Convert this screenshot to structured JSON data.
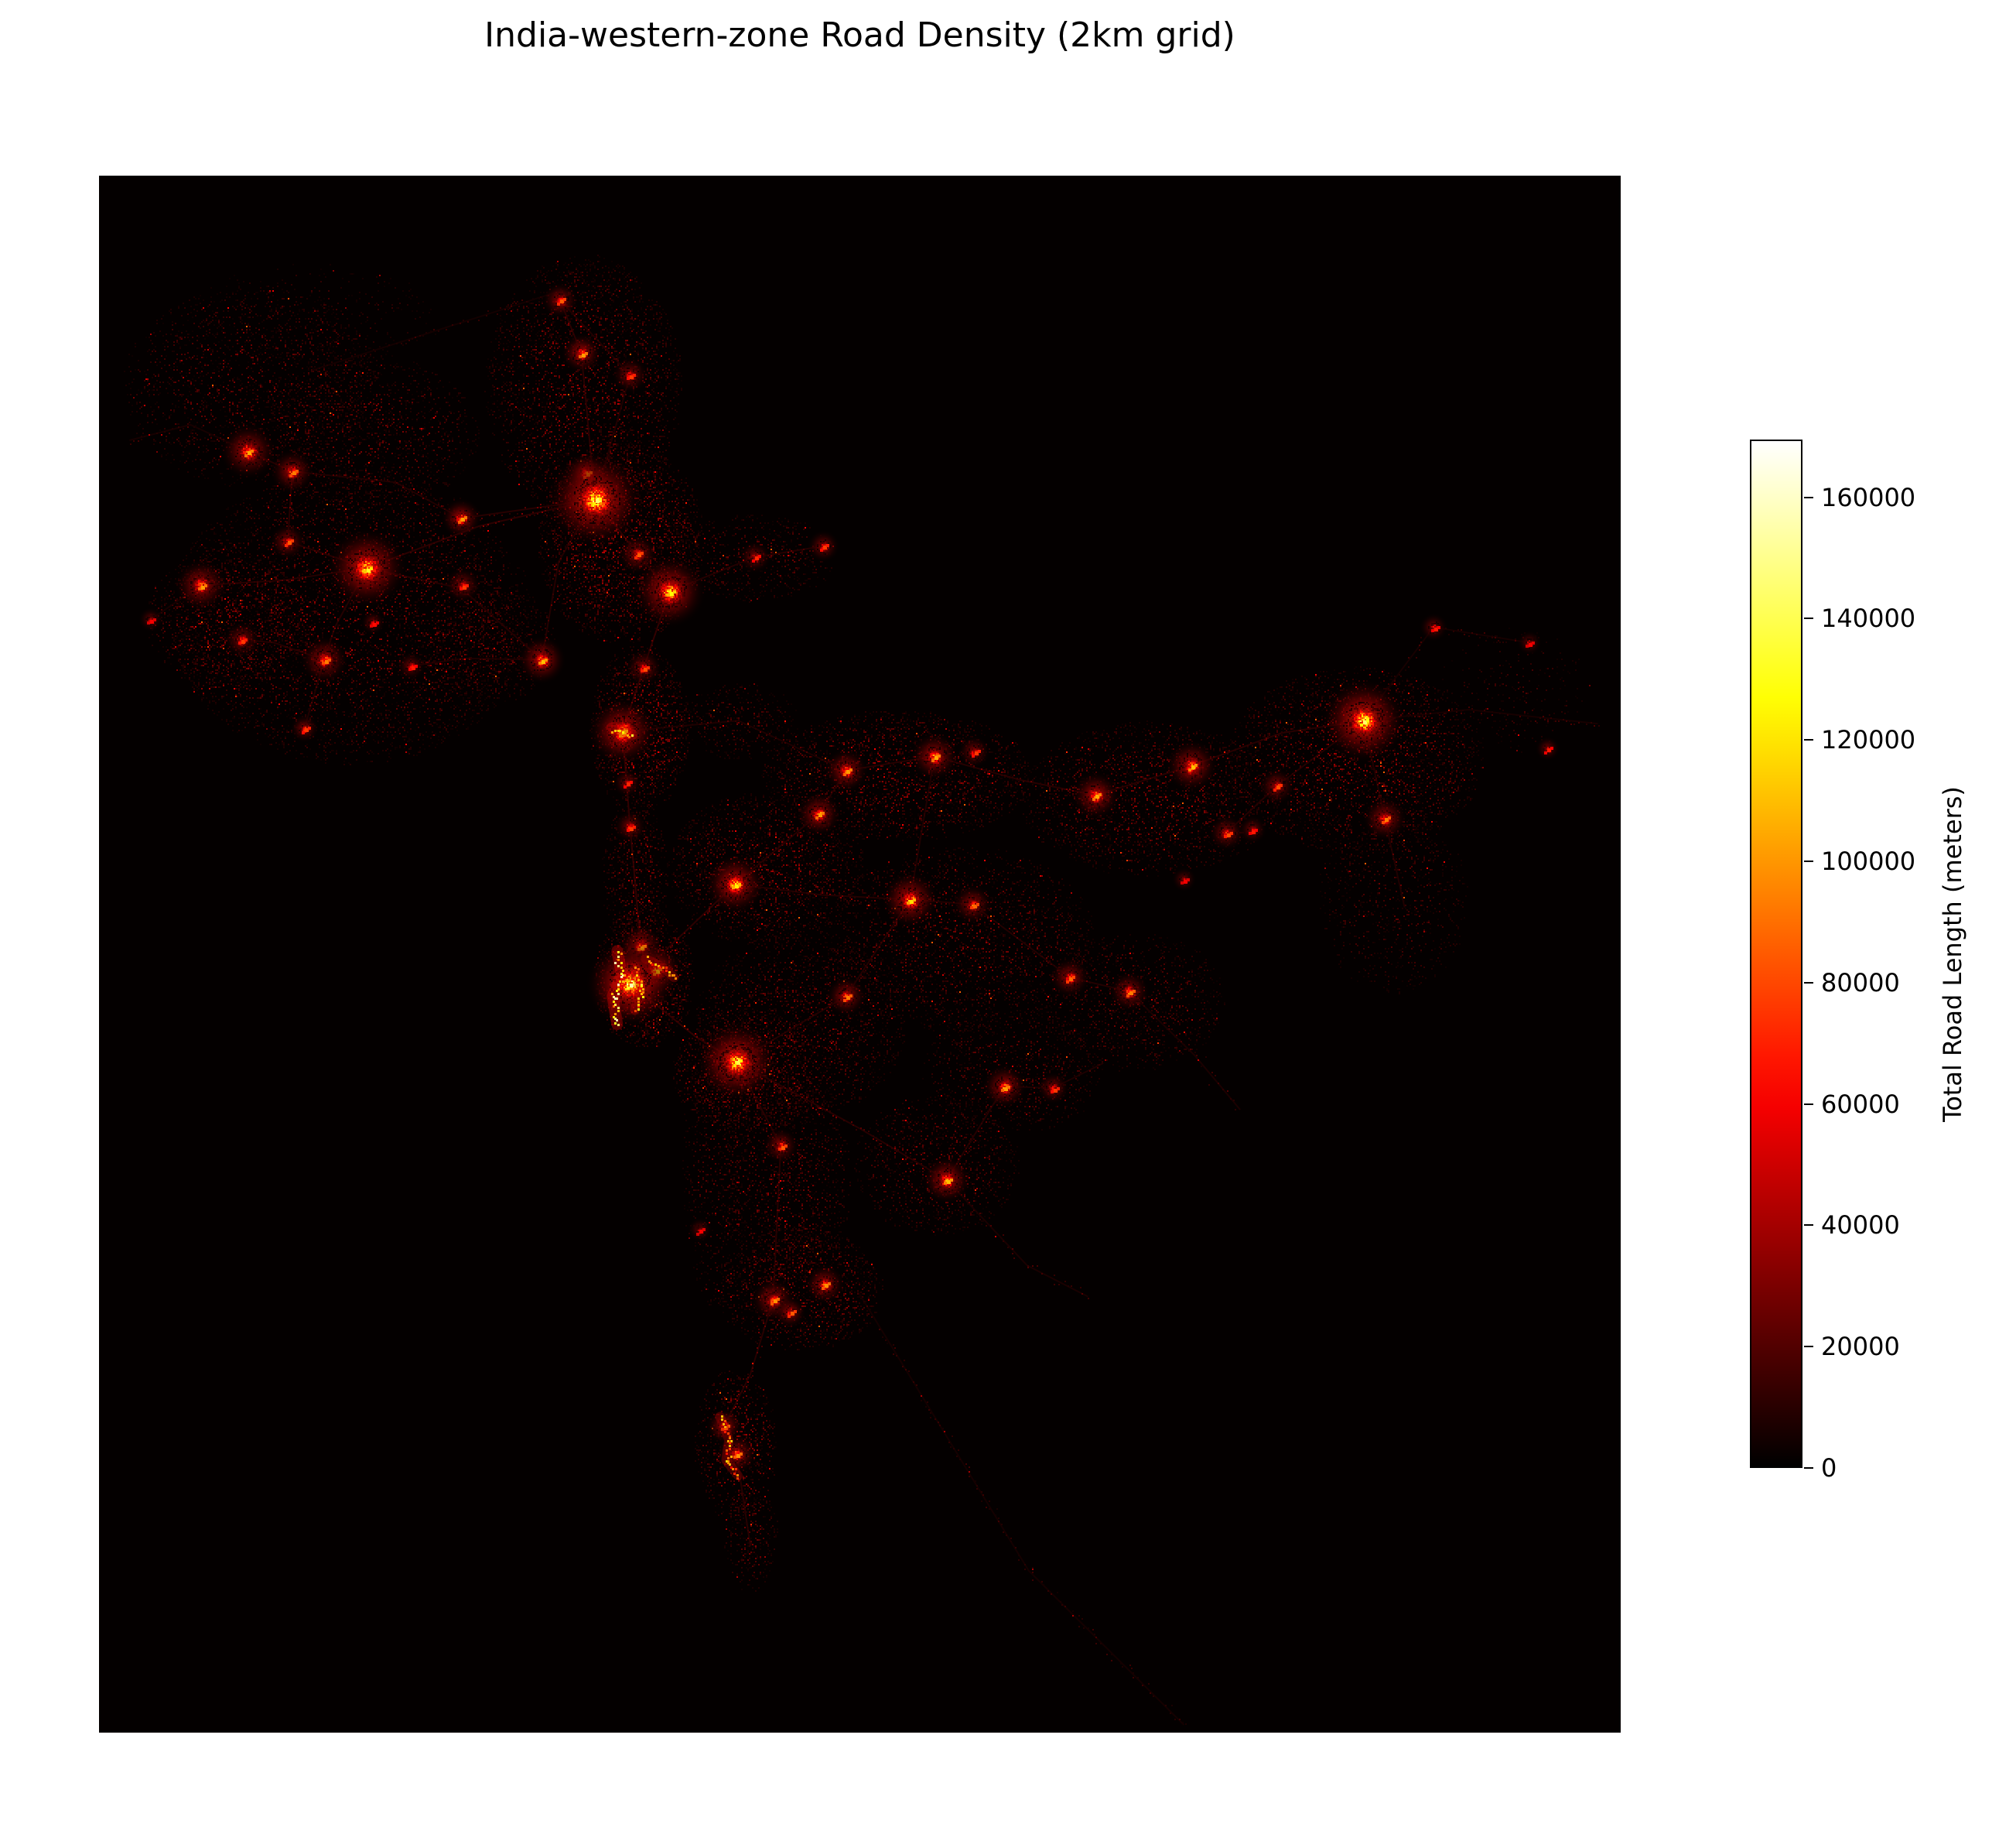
{
  "figure": {
    "title": "India-western-zone Road Density (2km grid)"
  },
  "colorbar": {
    "label": "Total Road Length (meters)",
    "ticks": [
      0,
      20000,
      40000,
      60000,
      80000,
      100000,
      120000,
      140000,
      160000
    ],
    "vmin": 0,
    "vmax": 169500,
    "colormap": "hot",
    "orientation": "vertical",
    "tick_side": "right"
  },
  "chart_data": {
    "type": "heatmap",
    "title": "India-western-zone Road Density (2km grid)",
    "colorbar_label": "Total Road Length (meters)",
    "colormap": "hot",
    "value_range_meters": [
      0,
      169500
    ],
    "colorbar_ticks": [
      0,
      20000,
      40000,
      60000,
      80000,
      100000,
      120000,
      140000,
      160000
    ],
    "grid_resolution_km": 2,
    "background_color": "#040000",
    "legend_position": "right",
    "hotspot_format": "[x_frac, y_frac, intensity_0to1_of_vmax, radius_px]",
    "hotspots": [
      [
        0.098,
        0.177,
        0.62,
        14
      ],
      [
        0.127,
        0.19,
        0.55,
        11
      ],
      [
        0.124,
        0.235,
        0.5,
        9
      ],
      [
        0.067,
        0.263,
        0.6,
        13
      ],
      [
        0.034,
        0.285,
        0.35,
        6
      ],
      [
        0.176,
        0.252,
        0.78,
        20
      ],
      [
        0.238,
        0.22,
        0.6,
        10
      ],
      [
        0.239,
        0.263,
        0.45,
        9
      ],
      [
        0.148,
        0.311,
        0.55,
        12
      ],
      [
        0.094,
        0.298,
        0.45,
        9
      ],
      [
        0.135,
        0.355,
        0.45,
        7
      ],
      [
        0.205,
        0.315,
        0.4,
        7
      ],
      [
        0.18,
        0.287,
        0.38,
        6
      ],
      [
        0.291,
        0.311,
        0.65,
        12
      ],
      [
        0.32,
        0.191,
        0.6,
        10
      ],
      [
        0.326,
        0.208,
        0.85,
        24
      ],
      [
        0.317,
        0.114,
        0.6,
        10
      ],
      [
        0.303,
        0.08,
        0.5,
        9
      ],
      [
        0.349,
        0.128,
        0.45,
        9
      ],
      [
        0.354,
        0.243,
        0.5,
        10
      ],
      [
        0.375,
        0.267,
        0.75,
        18
      ],
      [
        0.358,
        0.316,
        0.48,
        9
      ],
      [
        0.344,
        0.357,
        0.75,
        17
      ],
      [
        0.347,
        0.39,
        0.42,
        7
      ],
      [
        0.349,
        0.418,
        0.45,
        8
      ],
      [
        0.431,
        0.245,
        0.42,
        8
      ],
      [
        0.476,
        0.238,
        0.45,
        8
      ],
      [
        0.356,
        0.495,
        0.6,
        11
      ],
      [
        0.366,
        0.51,
        0.68,
        13
      ],
      [
        0.349,
        0.519,
        0.92,
        22
      ],
      [
        0.419,
        0.569,
        0.82,
        20
      ],
      [
        0.418,
        0.455,
        0.72,
        15
      ],
      [
        0.473,
        0.41,
        0.6,
        11
      ],
      [
        0.491,
        0.382,
        0.6,
        11
      ],
      [
        0.549,
        0.373,
        0.62,
        12
      ],
      [
        0.575,
        0.37,
        0.45,
        8
      ],
      [
        0.655,
        0.398,
        0.62,
        12
      ],
      [
        0.718,
        0.379,
        0.65,
        13
      ],
      [
        0.831,
        0.35,
        0.85,
        21
      ],
      [
        0.877,
        0.29,
        0.4,
        7
      ],
      [
        0.94,
        0.3,
        0.35,
        6
      ],
      [
        0.952,
        0.368,
        0.4,
        6
      ],
      [
        0.774,
        0.392,
        0.48,
        9
      ],
      [
        0.845,
        0.413,
        0.55,
        11
      ],
      [
        0.741,
        0.422,
        0.48,
        9
      ],
      [
        0.758,
        0.42,
        0.4,
        7
      ],
      [
        0.713,
        0.452,
        0.35,
        6
      ],
      [
        0.533,
        0.465,
        0.7,
        14
      ],
      [
        0.574,
        0.468,
        0.52,
        10
      ],
      [
        0.491,
        0.527,
        0.55,
        10
      ],
      [
        0.638,
        0.515,
        0.52,
        10
      ],
      [
        0.677,
        0.524,
        0.55,
        10
      ],
      [
        0.595,
        0.585,
        0.6,
        11
      ],
      [
        0.627,
        0.586,
        0.45,
        8
      ],
      [
        0.557,
        0.645,
        0.65,
        12
      ],
      [
        0.448,
        0.623,
        0.5,
        9
      ],
      [
        0.395,
        0.677,
        0.35,
        6
      ],
      [
        0.443,
        0.722,
        0.58,
        11
      ],
      [
        0.477,
        0.712,
        0.58,
        10
      ],
      [
        0.454,
        0.73,
        0.5,
        8
      ],
      [
        0.411,
        0.803,
        0.55,
        9
      ],
      [
        0.419,
        0.821,
        0.58,
        10
      ]
    ],
    "patch_format": "[cx_frac, cy_frac, rx_frac, ry_frac, peak_value_0to1, cell_count]",
    "diffuse_patches": [
      [
        0.1,
        0.135,
        0.085,
        0.065,
        0.16,
        2600
      ],
      [
        0.175,
        0.165,
        0.075,
        0.05,
        0.16,
        2000
      ],
      [
        0.14,
        0.09,
        0.08,
        0.035,
        0.1,
        700
      ],
      [
        0.165,
        0.283,
        0.12,
        0.095,
        0.18,
        7000
      ],
      [
        0.085,
        0.285,
        0.055,
        0.045,
        0.2,
        1500
      ],
      [
        0.318,
        0.135,
        0.065,
        0.085,
        0.2,
        3800
      ],
      [
        0.343,
        0.235,
        0.055,
        0.065,
        0.22,
        3600
      ],
      [
        0.43,
        0.245,
        0.055,
        0.028,
        0.15,
        900
      ],
      [
        0.355,
        0.355,
        0.033,
        0.055,
        0.22,
        1800
      ],
      [
        0.352,
        0.45,
        0.022,
        0.05,
        0.18,
        900
      ],
      [
        0.358,
        0.515,
        0.033,
        0.045,
        0.25,
        1600
      ],
      [
        0.438,
        0.445,
        0.065,
        0.05,
        0.2,
        2600
      ],
      [
        0.525,
        0.385,
        0.09,
        0.042,
        0.2,
        3000
      ],
      [
        0.69,
        0.4,
        0.085,
        0.05,
        0.18,
        3000
      ],
      [
        0.825,
        0.375,
        0.085,
        0.06,
        0.2,
        3800
      ],
      [
        0.85,
        0.465,
        0.05,
        0.06,
        0.13,
        1300
      ],
      [
        0.565,
        0.49,
        0.09,
        0.06,
        0.17,
        3600
      ],
      [
        0.68,
        0.53,
        0.06,
        0.045,
        0.15,
        1700
      ],
      [
        0.46,
        0.545,
        0.07,
        0.06,
        0.17,
        2800
      ],
      [
        0.6,
        0.575,
        0.06,
        0.04,
        0.15,
        1500
      ],
      [
        0.55,
        0.635,
        0.055,
        0.045,
        0.16,
        1600
      ],
      [
        0.45,
        0.645,
        0.045,
        0.065,
        0.17,
        1900
      ],
      [
        0.46,
        0.715,
        0.055,
        0.04,
        0.2,
        1800
      ],
      [
        0.405,
        0.63,
        0.022,
        0.1,
        0.13,
        1100
      ],
      [
        0.418,
        0.815,
        0.027,
        0.05,
        0.22,
        900
      ],
      [
        0.428,
        0.875,
        0.018,
        0.035,
        0.15,
        400
      ],
      [
        0.425,
        0.575,
        0.05,
        0.04,
        0.22,
        1700
      ],
      [
        0.93,
        0.33,
        0.05,
        0.04,
        0.1,
        500
      ],
      [
        0.42,
        0.35,
        0.04,
        0.025,
        0.13,
        600
      ],
      [
        0.255,
        0.3,
        0.045,
        0.04,
        0.16,
        1100
      ]
    ],
    "road_corridors": [
      {
        "v": 0.13,
        "points": [
          [
            0.326,
            0.208
          ],
          [
            0.25,
            0.225
          ],
          [
            0.176,
            0.252
          ]
        ]
      },
      {
        "v": 0.12,
        "points": [
          [
            0.176,
            0.252
          ],
          [
            0.12,
            0.26
          ],
          [
            0.067,
            0.263
          ]
        ]
      },
      {
        "v": 0.11,
        "points": [
          [
            0.176,
            0.252
          ],
          [
            0.155,
            0.29
          ],
          [
            0.148,
            0.311
          ],
          [
            0.115,
            0.3
          ],
          [
            0.094,
            0.298
          ]
        ]
      },
      {
        "v": 0.11,
        "points": [
          [
            0.176,
            0.252
          ],
          [
            0.238,
            0.265
          ],
          [
            0.291,
            0.311
          ]
        ]
      },
      {
        "v": 0.11,
        "points": [
          [
            0.326,
            0.208
          ],
          [
            0.302,
            0.248
          ],
          [
            0.291,
            0.311
          ]
        ]
      },
      {
        "v": 0.13,
        "points": [
          [
            0.326,
            0.208
          ],
          [
            0.317,
            0.114
          ],
          [
            0.303,
            0.08
          ]
        ]
      },
      {
        "v": 0.1,
        "points": [
          [
            0.303,
            0.08
          ],
          [
            0.349,
            0.128
          ],
          [
            0.326,
            0.208
          ]
        ]
      },
      {
        "v": 0.15,
        "points": [
          [
            0.326,
            0.208
          ],
          [
            0.354,
            0.243
          ],
          [
            0.375,
            0.267
          ],
          [
            0.358,
            0.316
          ],
          [
            0.344,
            0.357
          ],
          [
            0.349,
            0.418
          ],
          [
            0.356,
            0.495
          ],
          [
            0.349,
            0.519
          ]
        ]
      },
      {
        "v": 0.13,
        "points": [
          [
            0.349,
            0.519
          ],
          [
            0.388,
            0.483
          ],
          [
            0.418,
            0.455
          ]
        ]
      },
      {
        "v": 0.14,
        "points": [
          [
            0.349,
            0.519
          ],
          [
            0.392,
            0.553
          ],
          [
            0.419,
            0.569
          ]
        ]
      },
      {
        "v": 0.12,
        "points": [
          [
            0.418,
            0.455
          ],
          [
            0.473,
            0.41
          ],
          [
            0.491,
            0.382
          ],
          [
            0.549,
            0.373
          ],
          [
            0.605,
            0.388
          ],
          [
            0.655,
            0.398
          ],
          [
            0.718,
            0.379
          ],
          [
            0.777,
            0.358
          ],
          [
            0.831,
            0.35
          ]
        ]
      },
      {
        "v": 0.11,
        "points": [
          [
            0.418,
            0.455
          ],
          [
            0.475,
            0.462
          ],
          [
            0.533,
            0.465
          ],
          [
            0.574,
            0.468
          ],
          [
            0.638,
            0.515
          ],
          [
            0.677,
            0.524
          ]
        ]
      },
      {
        "v": 0.11,
        "points": [
          [
            0.419,
            0.569
          ],
          [
            0.491,
            0.527
          ],
          [
            0.533,
            0.465
          ]
        ]
      },
      {
        "v": 0.12,
        "points": [
          [
            0.419,
            0.569
          ],
          [
            0.5,
            0.612
          ],
          [
            0.557,
            0.645
          ]
        ]
      },
      {
        "v": 0.12,
        "points": [
          [
            0.419,
            0.569
          ],
          [
            0.448,
            0.623
          ],
          [
            0.443,
            0.722
          ],
          [
            0.428,
            0.77
          ],
          [
            0.411,
            0.803
          ],
          [
            0.419,
            0.821
          ],
          [
            0.428,
            0.88
          ]
        ]
      },
      {
        "v": 0.11,
        "points": [
          [
            0.557,
            0.645
          ],
          [
            0.595,
            0.585
          ]
        ]
      },
      {
        "v": 0.09,
        "points": [
          [
            0.595,
            0.585
          ],
          [
            0.627,
            0.586
          ],
          [
            0.66,
            0.57
          ]
        ]
      },
      {
        "v": 0.11,
        "points": [
          [
            0.831,
            0.35
          ],
          [
            0.774,
            0.392
          ],
          [
            0.741,
            0.422
          ]
        ]
      },
      {
        "v": 0.1,
        "points": [
          [
            0.831,
            0.35
          ],
          [
            0.845,
            0.413
          ],
          [
            0.858,
            0.47
          ]
        ]
      },
      {
        "v": 0.07,
        "points": [
          [
            0.831,
            0.35
          ],
          [
            0.9,
            0.343
          ],
          [
            0.985,
            0.352
          ]
        ]
      },
      {
        "v": 0.12,
        "points": [
          [
            0.098,
            0.177
          ],
          [
            0.127,
            0.19
          ],
          [
            0.124,
            0.235
          ],
          [
            0.176,
            0.252
          ]
        ]
      },
      {
        "v": 0.1,
        "points": [
          [
            0.127,
            0.19
          ],
          [
            0.195,
            0.197
          ],
          [
            0.238,
            0.22
          ]
        ]
      },
      {
        "v": 0.12,
        "points": [
          [
            0.238,
            0.22
          ],
          [
            0.29,
            0.213
          ],
          [
            0.326,
            0.208
          ]
        ]
      },
      {
        "v": 0.11,
        "points": [
          [
            0.375,
            0.267
          ],
          [
            0.431,
            0.245
          ],
          [
            0.476,
            0.238
          ]
        ]
      },
      {
        "v": 0.06,
        "points": [
          [
            0.499,
            0.717
          ],
          [
            0.611,
            0.896
          ],
          [
            0.713,
            0.995
          ]
        ]
      },
      {
        "v": 0.08,
        "points": [
          [
            0.557,
            0.645
          ],
          [
            0.61,
            0.7
          ],
          [
            0.65,
            0.72
          ]
        ]
      },
      {
        "v": 0.08,
        "points": [
          [
            0.677,
            0.524
          ],
          [
            0.72,
            0.565
          ],
          [
            0.75,
            0.6
          ]
        ]
      },
      {
        "v": 0.07,
        "points": [
          [
            0.831,
            0.35
          ],
          [
            0.877,
            0.29
          ],
          [
            0.94,
            0.3
          ]
        ]
      },
      {
        "v": 0.1,
        "points": [
          [
            0.549,
            0.373
          ],
          [
            0.533,
            0.465
          ]
        ]
      },
      {
        "v": 0.1,
        "points": [
          [
            0.148,
            0.311
          ],
          [
            0.135,
            0.355
          ]
        ]
      },
      {
        "v": 0.09,
        "points": [
          [
            0.291,
            0.311
          ],
          [
            0.24,
            0.31
          ],
          [
            0.205,
            0.315
          ]
        ]
      },
      {
        "v": 0.07,
        "points": [
          [
            0.067,
            0.263
          ],
          [
            0.034,
            0.285
          ]
        ]
      },
      {
        "v": 0.07,
        "points": [
          [
            0.098,
            0.177
          ],
          [
            0.06,
            0.16
          ],
          [
            0.02,
            0.17
          ]
        ]
      },
      {
        "v": 0.06,
        "points": [
          [
            0.14,
            0.125
          ],
          [
            0.22,
            0.1
          ],
          [
            0.3,
            0.075
          ]
        ]
      },
      {
        "v": 0.09,
        "points": [
          [
            0.344,
            0.357
          ],
          [
            0.42,
            0.35
          ],
          [
            0.491,
            0.382
          ]
        ]
      }
    ],
    "bright_streaks": [
      {
        "v": 0.85,
        "w": 5,
        "points": [
          [
            0.3405,
            0.545
          ],
          [
            0.3375,
            0.527
          ],
          [
            0.3435,
            0.513
          ],
          [
            0.3405,
            0.498
          ]
        ]
      },
      {
        "v": 0.7,
        "w": 4,
        "points": [
          [
            0.352,
            0.536
          ],
          [
            0.356,
            0.522
          ],
          [
            0.352,
            0.508
          ]
        ]
      },
      {
        "v": 0.6,
        "w": 4,
        "points": [
          [
            0.359,
            0.503
          ],
          [
            0.37,
            0.508
          ],
          [
            0.378,
            0.515
          ]
        ]
      },
      {
        "v": 0.6,
        "w": 4,
        "points": [
          [
            0.408,
            0.797
          ],
          [
            0.414,
            0.812
          ],
          [
            0.412,
            0.825
          ],
          [
            0.42,
            0.835
          ]
        ]
      },
      {
        "v": 0.7,
        "w": 5,
        "points": [
          [
            0.337,
            0.355
          ],
          [
            0.35,
            0.359
          ]
        ]
      }
    ]
  }
}
